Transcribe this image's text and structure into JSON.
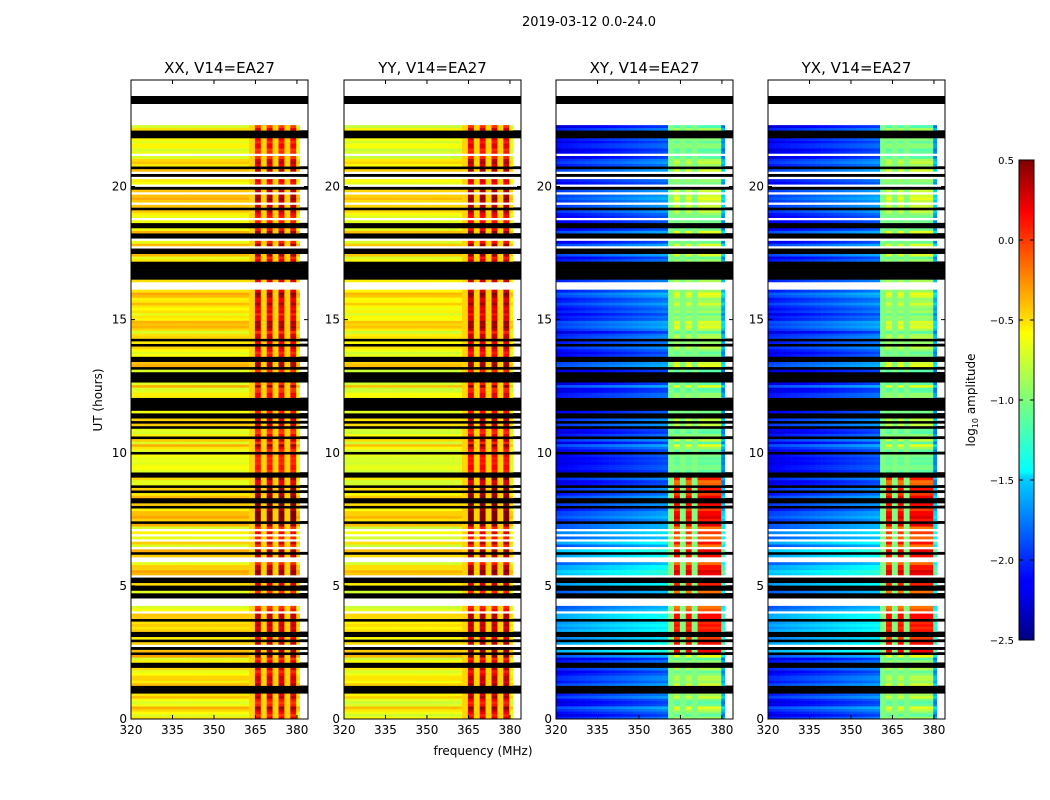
{
  "figure_title": "2019-03-12 0.0-24.0",
  "chart_data": [
    {
      "type": "heatmap",
      "title": "XX, V14=EA27",
      "xlabel": "",
      "ylabel": "UT (hours)",
      "x_ticks": [
        "320",
        "335",
        "350",
        "365",
        "380"
      ],
      "y_ticks": [
        "0",
        "5",
        "10",
        "15",
        "20"
      ],
      "xlim": [
        320,
        384
      ],
      "ylim": [
        0,
        24
      ],
      "base_level": -0.55,
      "band_level": 0.2,
      "band_range_mhz": [
        363,
        380
      ]
    },
    {
      "type": "heatmap",
      "title": "YY, V14=EA27",
      "xlabel": "frequency (MHz)",
      "ylabel": "",
      "x_ticks": [
        "320",
        "335",
        "350",
        "365",
        "380"
      ],
      "y_ticks": [
        "0",
        "5",
        "10",
        "15",
        "20"
      ],
      "xlim": [
        320,
        384
      ],
      "ylim": [
        0,
        24
      ],
      "base_level": -0.6,
      "band_level": 0.25,
      "band_range_mhz": [
        363,
        380
      ]
    },
    {
      "type": "heatmap",
      "title": "XY, V14=EA27",
      "xlabel": "",
      "ylabel": "",
      "x_ticks": [
        "320",
        "335",
        "350",
        "365",
        "380"
      ],
      "y_ticks": [
        "0",
        "5",
        "10",
        "15",
        "20"
      ],
      "xlim": [
        320,
        384
      ],
      "ylim": [
        0,
        24
      ],
      "base_level": -2.05,
      "band_level": -0.9,
      "band_range_mhz": [
        361,
        380
      ]
    },
    {
      "type": "heatmap",
      "title": "YX, V14=EA27",
      "xlabel": "",
      "ylabel": "",
      "x_ticks": [
        "320",
        "335",
        "350",
        "365",
        "380"
      ],
      "y_ticks": [
        "0",
        "5",
        "10",
        "15",
        "20"
      ],
      "xlim": [
        320,
        384
      ],
      "ylim": [
        0,
        24
      ],
      "base_level": -2.05,
      "band_level": -0.9,
      "band_range_mhz": [
        361,
        380
      ]
    }
  ],
  "colorbar": {
    "label": "log10 amplitude",
    "ticks": [
      "0.5",
      "0.0",
      "−0.5",
      "−1.0",
      "−1.5",
      "−2.0",
      "−2.5"
    ],
    "range": [
      -2.5,
      0.5
    ],
    "colormap": "jet"
  }
}
